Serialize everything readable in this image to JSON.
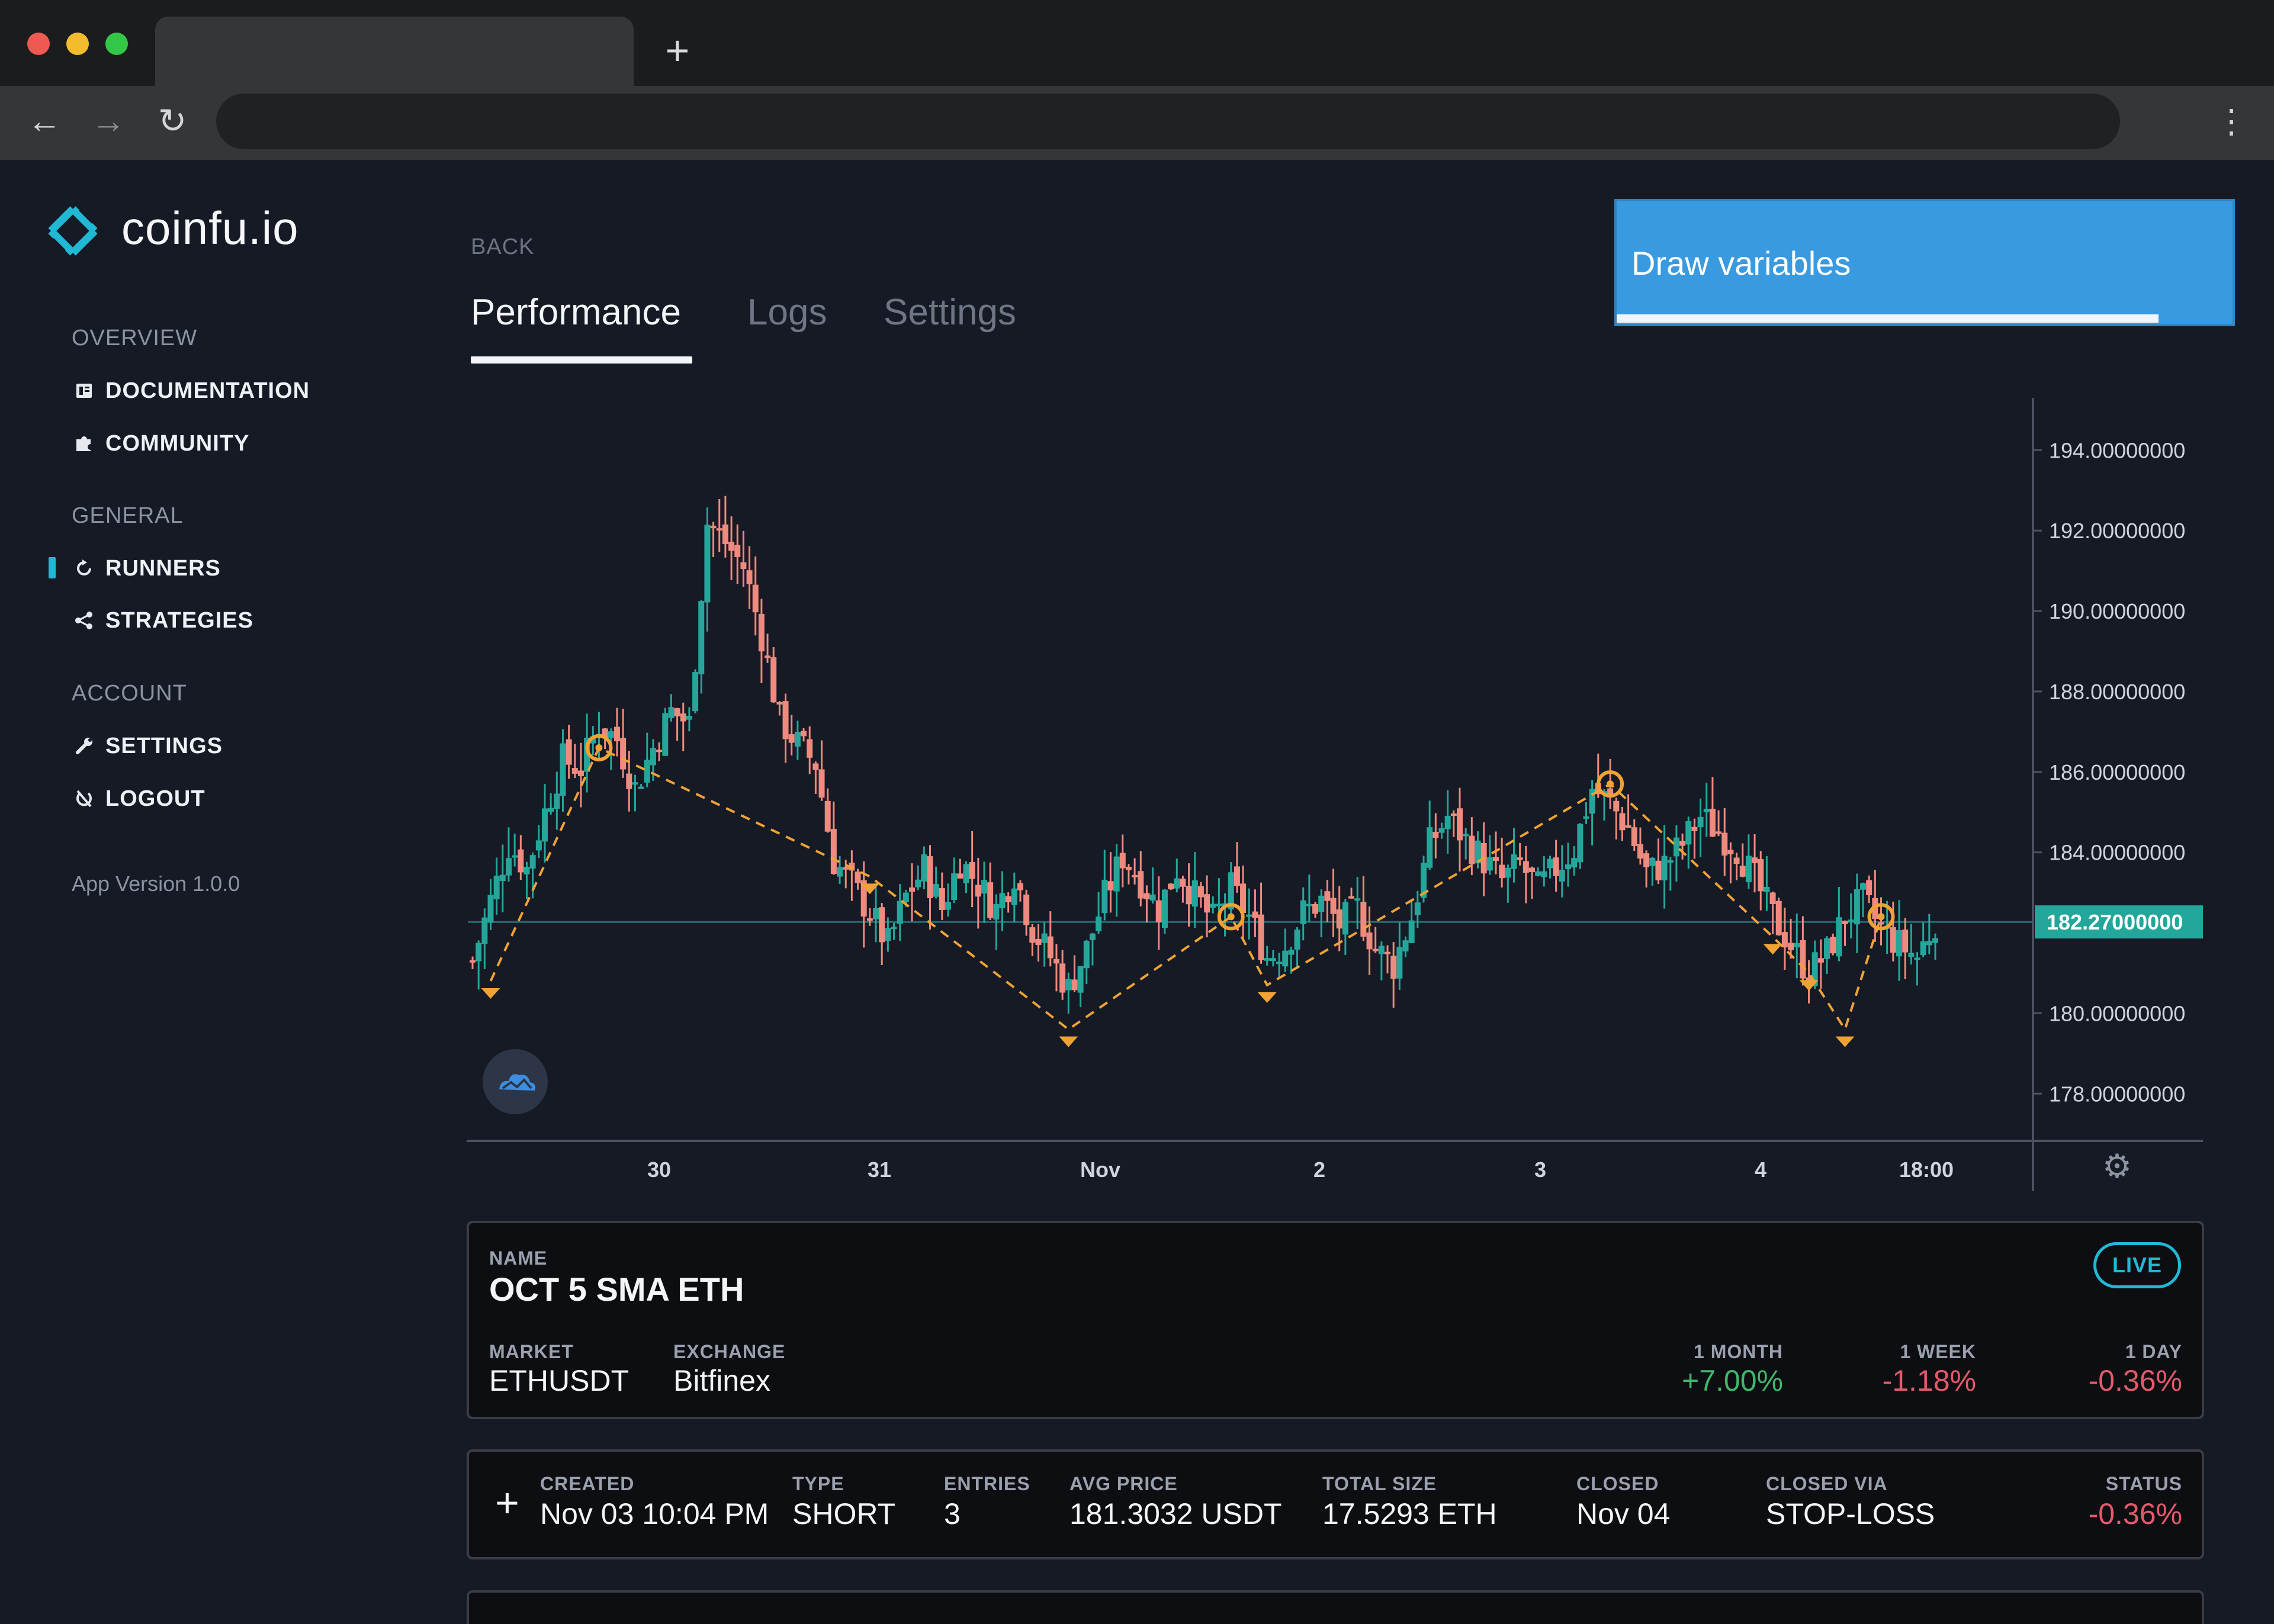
{
  "browser": {
    "new_tab_label": "+",
    "back_icon": "arrow-left-icon",
    "forward_icon": "arrow-right-icon",
    "reload_icon": "reload-icon",
    "menu_icon": "kebab-menu-icon"
  },
  "brand": {
    "name": "coinfu.io",
    "accent": "#21b8d6"
  },
  "sidebar": {
    "sections": [
      {
        "heading": "OVERVIEW",
        "items": [
          {
            "label": "DOCUMENTATION",
            "icon": "book-icon"
          },
          {
            "label": "COMMUNITY",
            "icon": "puzzle-icon"
          }
        ]
      },
      {
        "heading": "GENERAL",
        "items": [
          {
            "label": "RUNNERS",
            "icon": "refresh-icon",
            "active": true
          },
          {
            "label": "STRATEGIES",
            "icon": "share-icon"
          }
        ]
      },
      {
        "heading": "ACCOUNT",
        "items": [
          {
            "label": "SETTINGS",
            "icon": "wrench-icon"
          },
          {
            "label": "LOGOUT",
            "icon": "logout-icon"
          }
        ]
      }
    ],
    "app_version": "App Version 1.0.0"
  },
  "main": {
    "back_label": "BACK",
    "tabs": [
      {
        "label": "Performance",
        "active": true
      },
      {
        "label": "Logs"
      },
      {
        "label": "Settings"
      }
    ],
    "draw_panel": {
      "label": "Draw variables",
      "progress": 0.88
    }
  },
  "chart_data": {
    "type": "candlestick",
    "y_ticks": [
      "194.00000000",
      "192.00000000",
      "190.00000000",
      "188.00000000",
      "186.00000000",
      "184.00000000",
      "180.00000000",
      "178.00000000"
    ],
    "ylim": [
      176.9,
      195.3
    ],
    "x_ticks": [
      "30",
      "31",
      "Nov",
      "2",
      "3",
      "4",
      "18:00"
    ],
    "current_price_label": "182.27000000",
    "current_price": 182.27,
    "up_color": "#26a69a",
    "down_color": "#ef8a7f",
    "marker_color": "#f0a334",
    "price_path": [
      181.3,
      182.8,
      184.2,
      183.6,
      185.0,
      186.3,
      186.1,
      187.2,
      186.8,
      185.6,
      186.6,
      187.5,
      187.2,
      192.2,
      191.7,
      191.1,
      189.4,
      187.3,
      186.7,
      186.2,
      183.8,
      183.2,
      182.5,
      181.7,
      182.9,
      183.6,
      182.6,
      183.8,
      183.2,
      182.6,
      183.5,
      182.1,
      181.4,
      180.6,
      181.6,
      182.9,
      183.9,
      183.3,
      182.6,
      183.6,
      182.9,
      182.3,
      183.1,
      182.4,
      181.4,
      181.7,
      182.5,
      182.8,
      182.2,
      182.6,
      181.6,
      181.2,
      182.4,
      184.2,
      184.9,
      184.3,
      183.8,
      183.3,
      183.7,
      183.1,
      183.6,
      184.1,
      185.6,
      185.2,
      184.6,
      183.5,
      183.7,
      184.2,
      184.9,
      184.5,
      184.1,
      183.3,
      182.4,
      181.7,
      181.0,
      181.5,
      182.4,
      182.8,
      182.1,
      181.7,
      181.4,
      182.3
    ],
    "trade_markers": [
      {
        "kind": "entry",
        "index": 1,
        "price": 180.8
      },
      {
        "kind": "exit",
        "index": 7,
        "price": 186.6
      },
      {
        "kind": "entry",
        "index": 22,
        "price": 183.4
      },
      {
        "kind": "entry",
        "index": 33,
        "price": 179.6
      },
      {
        "kind": "exit",
        "index": 42,
        "price": 182.4
      },
      {
        "kind": "entry",
        "index": 44,
        "price": 180.7
      },
      {
        "kind": "exit",
        "index": 63,
        "price": 185.7
      },
      {
        "kind": "entry",
        "index": 72,
        "price": 181.9
      },
      {
        "kind": "entry",
        "index": 74,
        "price": 181.0
      },
      {
        "kind": "entry",
        "index": 76,
        "price": 179.6
      },
      {
        "kind": "exit",
        "index": 78,
        "price": 182.4
      }
    ]
  },
  "runner": {
    "name_label": "NAME",
    "name": "OCT 5 SMA ETH",
    "status_badge": "LIVE",
    "market_label": "MARKET",
    "market": "ETHUSDT",
    "exchange_label": "EXCHANGE",
    "exchange": "Bitfinex",
    "perf": [
      {
        "label": "1 MONTH",
        "value": "+7.00%"
      },
      {
        "label": "1 WEEK",
        "value": "-1.18%"
      },
      {
        "label": "1 DAY",
        "value": "-0.36%"
      }
    ]
  },
  "positions": {
    "expand_label": "+",
    "columns": [
      "CREATED",
      "TYPE",
      "ENTRIES",
      "AVG PRICE",
      "TOTAL SIZE",
      "CLOSED",
      "CLOSED VIA",
      "STATUS"
    ],
    "rows": [
      {
        "created": "Nov 03 10:04 PM",
        "type": "SHORT",
        "entries": "3",
        "avg_price": "181.3032 USDT",
        "total_size": "17.5293 ETH",
        "closed": "Nov 04",
        "closed_via": "STOP-LOSS",
        "status": "-0.36%"
      }
    ]
  }
}
